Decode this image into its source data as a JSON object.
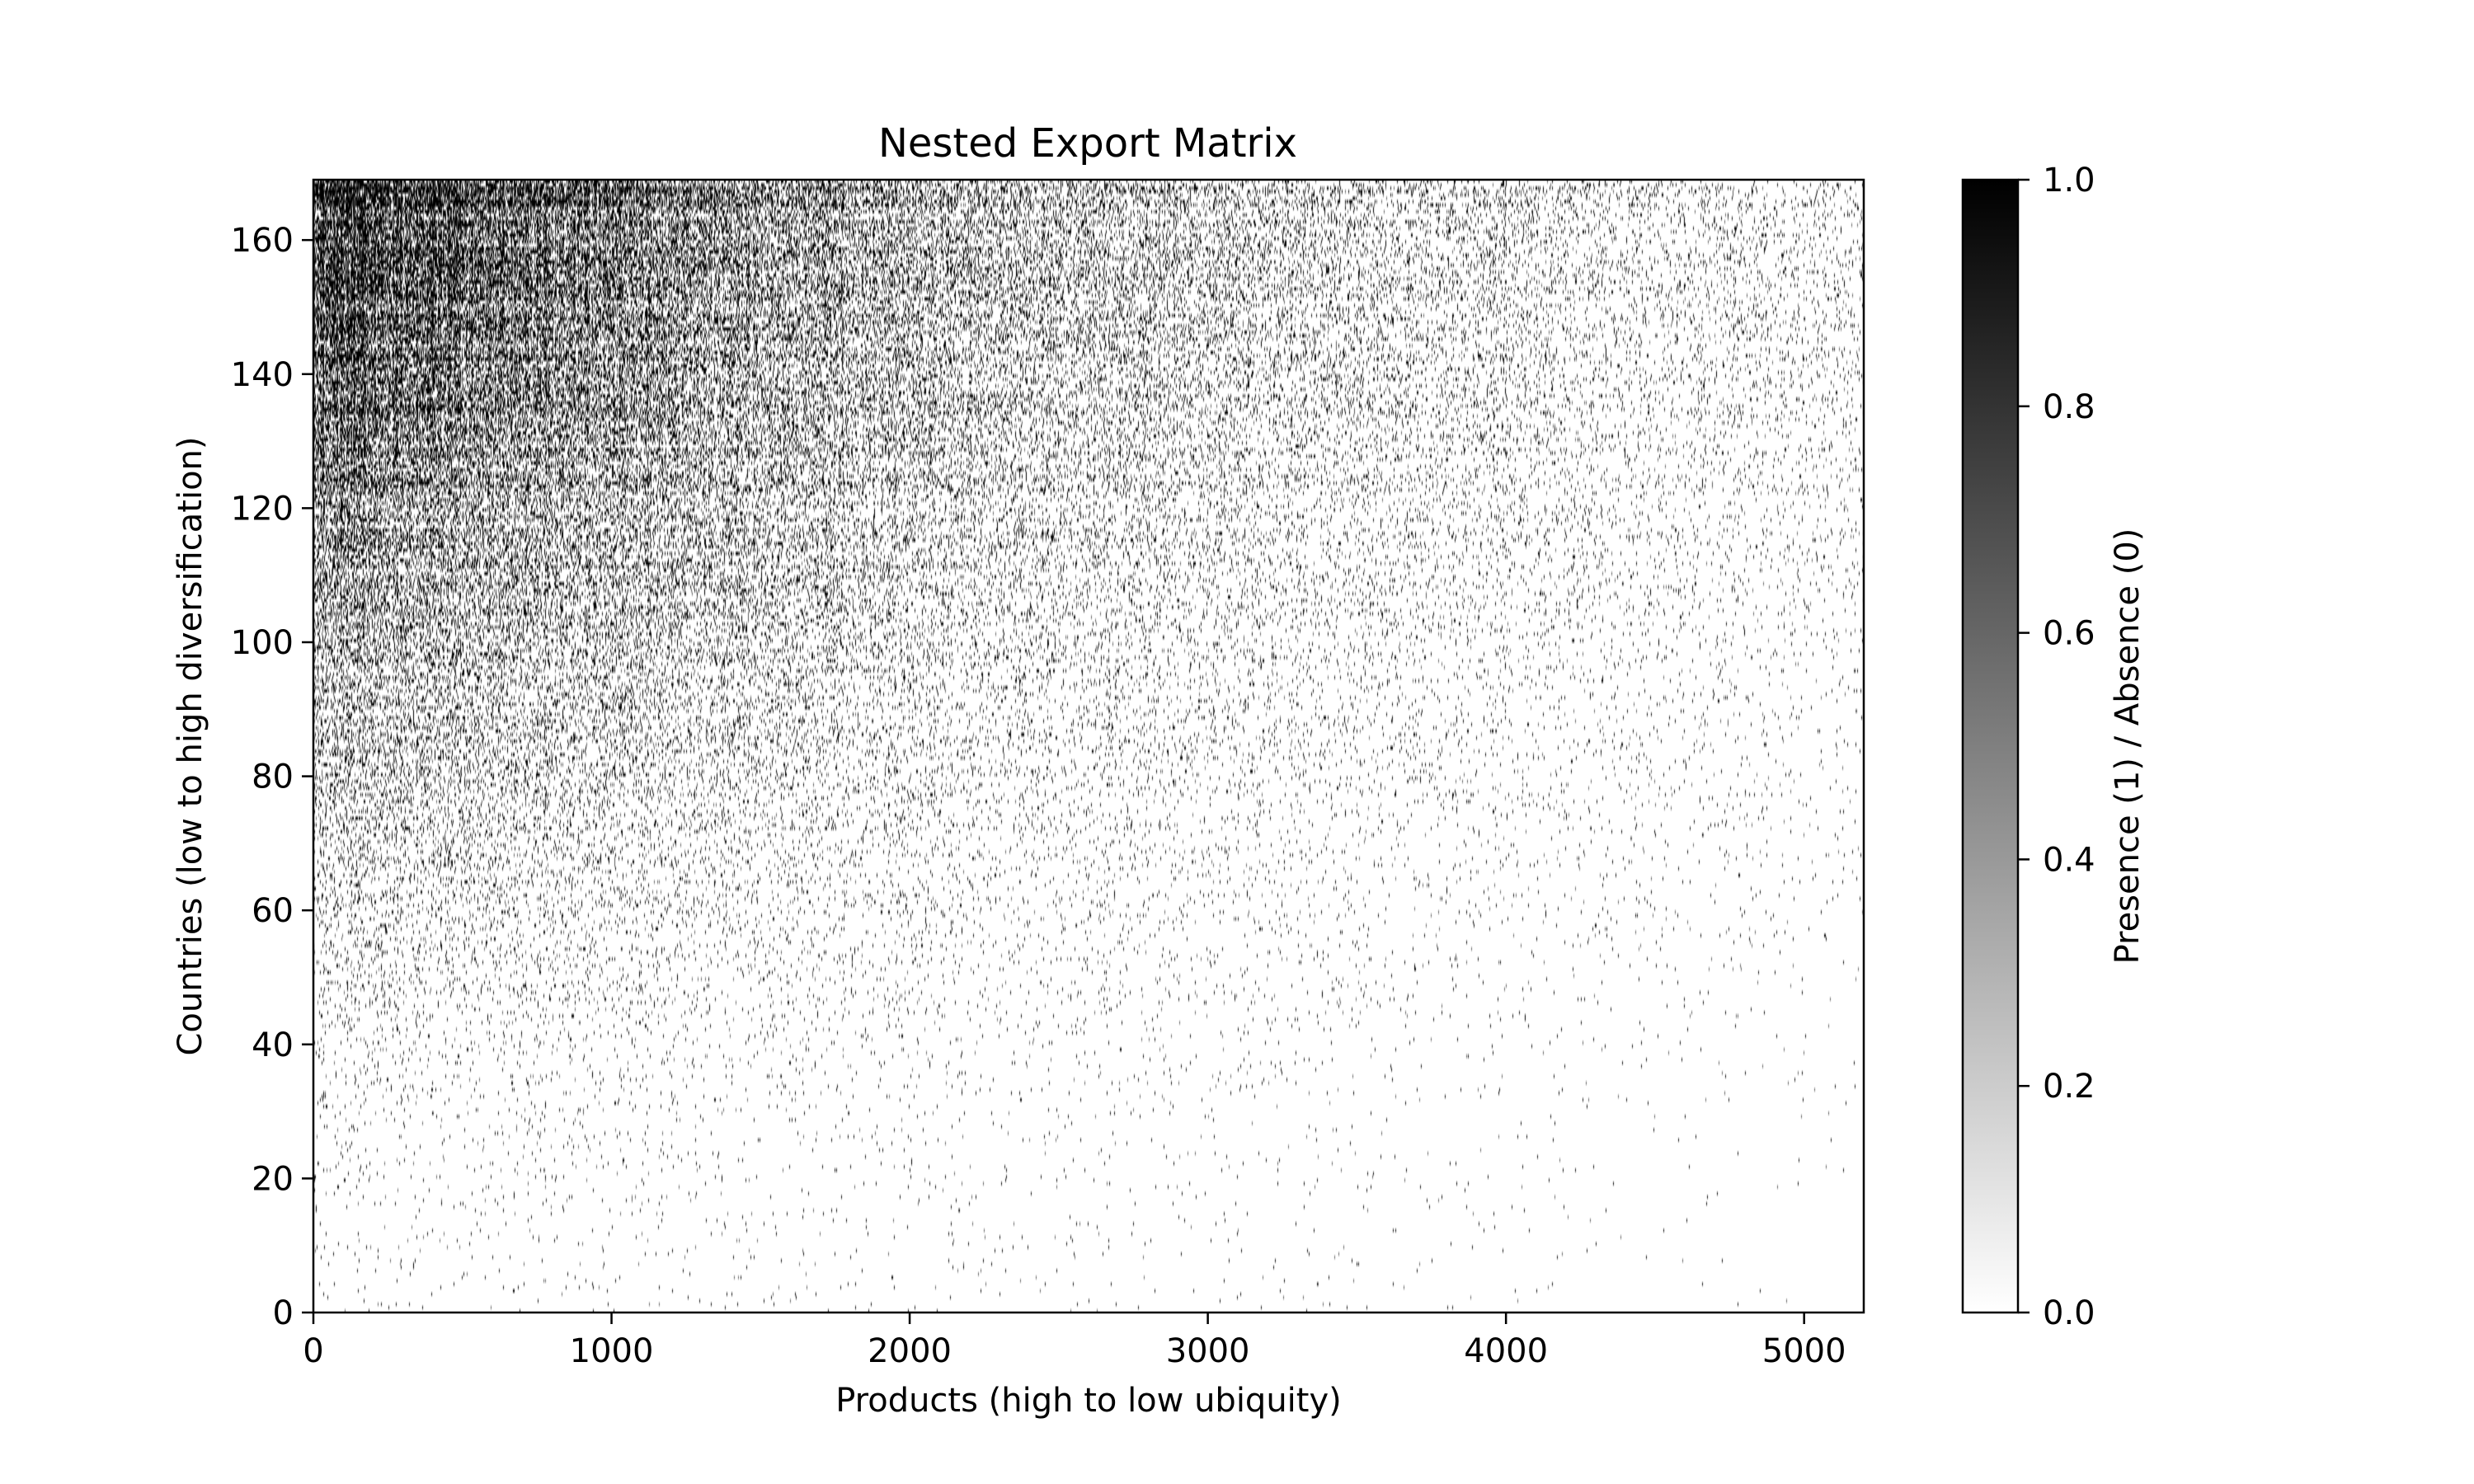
{
  "chart_data": {
    "type": "heatmap",
    "title": "Nested Export Matrix",
    "xlabel": "Products (high to low ubiquity)",
    "ylabel": "Countries (low to high diversification)",
    "colorbar_label": "Presence (1) / Absence (0)",
    "colormap": [
      "#ffffff",
      "#000000"
    ],
    "xlim": [
      0,
      5200
    ],
    "ylim": [
      0,
      169
    ],
    "x_ticks": [
      0,
      1000,
      2000,
      3000,
      4000,
      5000
    ],
    "x_tick_labels": [
      "0",
      "1000",
      "2000",
      "3000",
      "4000",
      "5000"
    ],
    "y_ticks": [
      0,
      20,
      40,
      60,
      80,
      100,
      120,
      140,
      160
    ],
    "y_tick_labels": [
      "0",
      "20",
      "40",
      "60",
      "80",
      "100",
      "120",
      "140",
      "160"
    ],
    "colorbar_ticks": [
      0.0,
      0.2,
      0.4,
      0.6,
      0.8,
      1.0
    ],
    "colorbar_tick_labels": [
      "0.0",
      "0.2",
      "0.4",
      "0.6",
      "0.8",
      "1.0"
    ],
    "n_countries": 169,
    "n_products": 5200,
    "pattern": "nested: presence probability increases with country diversification (y) and decreases with product ubiquity rank (x)"
  }
}
